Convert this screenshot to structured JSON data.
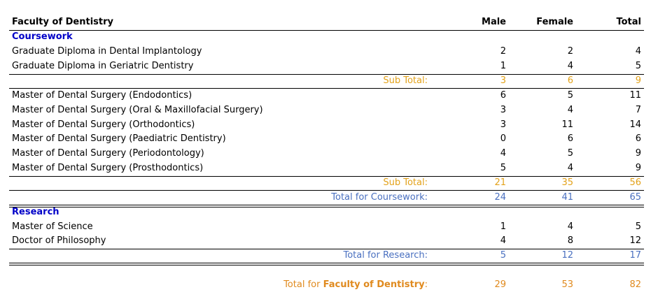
{
  "header": {
    "faculty": "Faculty of Dentistry",
    "male": "Male",
    "female": "Female",
    "total": "Total"
  },
  "coursework": {
    "title": "Coursework",
    "group1": [
      {
        "name": "Graduate Diploma in Dental Implantology",
        "male": "2",
        "female": "2",
        "total": "4"
      },
      {
        "name": "Graduate Diploma in Geriatric Dentistry",
        "male": "1",
        "female": "4",
        "total": "5"
      }
    ],
    "subtotal1": {
      "label": "Sub Total:",
      "male": "3",
      "female": "6",
      "total": "9"
    },
    "group2": [
      {
        "name": "Master of Dental Surgery (Endodontics)",
        "male": "6",
        "female": "5",
        "total": "11"
      },
      {
        "name": "Master of Dental Surgery (Oral & Maxillofacial Surgery)",
        "male": "3",
        "female": "4",
        "total": "7"
      },
      {
        "name": "Master of Dental Surgery (Orthodontics)",
        "male": "3",
        "female": "11",
        "total": "14"
      },
      {
        "name": "Master of Dental Surgery (Paediatric Dentistry)",
        "male": "0",
        "female": "6",
        "total": "6"
      },
      {
        "name": "Master of Dental Surgery (Periodontology)",
        "male": "4",
        "female": "5",
        "total": "9"
      },
      {
        "name": "Master of Dental Surgery (Prosthodontics)",
        "male": "5",
        "female": "4",
        "total": "9"
      }
    ],
    "subtotal2": {
      "label": "Sub Total:",
      "male": "21",
      "female": "35",
      "total": "56"
    },
    "total": {
      "label": "Total for Coursework:",
      "male": "24",
      "female": "41",
      "total": "65"
    }
  },
  "research": {
    "title": "Research",
    "items": [
      {
        "name": "Master of Science",
        "male": "1",
        "female": "4",
        "total": "5"
      },
      {
        "name": "Doctor of Philosophy",
        "male": "4",
        "female": "8",
        "total": "12"
      }
    ],
    "total": {
      "label": "Total for Research:",
      "male": "5",
      "female": "12",
      "total": "17"
    }
  },
  "grand_total": {
    "label_prefix": "Total for ",
    "label_faculty": "Faculty of Dentistry",
    "label_suffix": ":",
    "male": "29",
    "female": "53",
    "total": "82"
  }
}
